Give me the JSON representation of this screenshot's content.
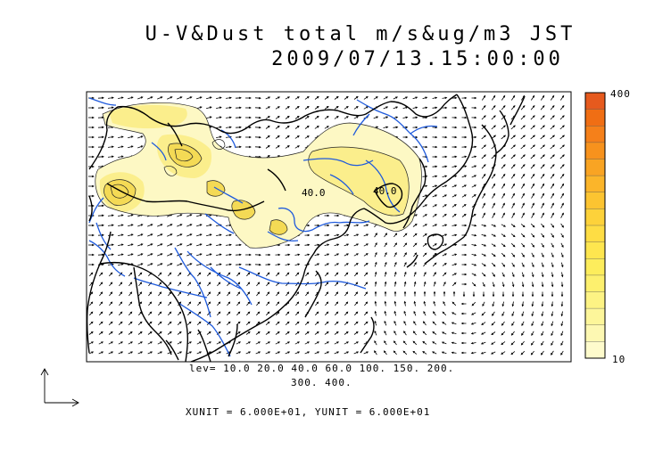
{
  "title": {
    "line1": "U-V&Dust total m/s&ug/m3 JST",
    "line2": "2009/07/13.15:00:00"
  },
  "contour_label": "40.0",
  "levels": {
    "line1": "lev= 10.0 20.0 40.0 60.0 100. 150. 200.",
    "line2": "300. 400."
  },
  "units_text": "XUNIT = 6.000E+01, YUNIT = 6.000E+01",
  "colorbar": {
    "max_label": "400",
    "min_label": "10",
    "colors": [
      "#e65a1e",
      "#f06e14",
      "#f5801a",
      "#f7921d",
      "#f9a423",
      "#fbb52a",
      "#fcc431",
      "#fdd23a",
      "#fedd44",
      "#fee64f",
      "#fded5c",
      "#fdf06e",
      "#fdf384",
      "#fdf69a",
      "#fdf8b2",
      "#fefbcc"
    ]
  },
  "map": {
    "coast_color": "#000000",
    "river_color": "#1e5adc",
    "dust_colors": [
      "#fdf8c4",
      "#fbee8c",
      "#f4da55"
    ]
  }
}
